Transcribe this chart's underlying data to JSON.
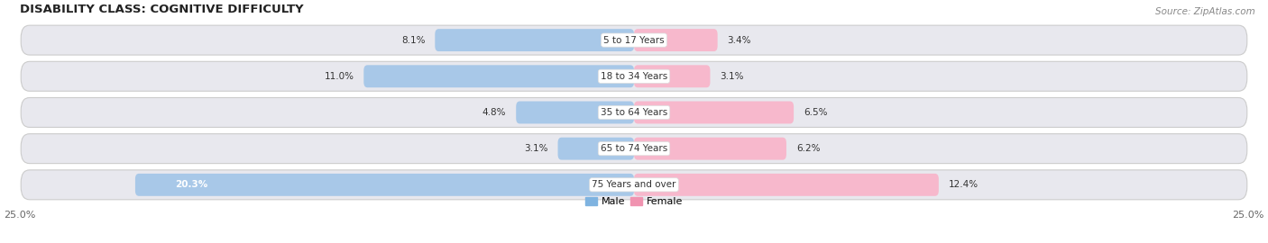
{
  "title": "DISABILITY CLASS: COGNITIVE DIFFICULTY",
  "source": "Source: ZipAtlas.com",
  "categories": [
    "5 to 17 Years",
    "18 to 34 Years",
    "35 to 64 Years",
    "65 to 74 Years",
    "75 Years and over"
  ],
  "male_values": [
    8.1,
    11.0,
    4.8,
    3.1,
    20.3
  ],
  "female_values": [
    3.4,
    3.1,
    6.5,
    6.2,
    12.4
  ],
  "max_val": 25.0,
  "male_color_light": "#a8c8e8",
  "male_color_dark": "#5b9bd5",
  "female_color_light": "#f7b8cc",
  "female_color_dark": "#e8517a",
  "row_bg_color": "#e8e8ee",
  "label_color": "#333333",
  "title_color": "#222222",
  "source_color": "#888888",
  "legend_male_color": "#7fb3e0",
  "legend_female_color": "#f093b0",
  "axis_label_color": "#666666",
  "figsize": [
    14.06,
    2.7
  ],
  "dpi": 100
}
